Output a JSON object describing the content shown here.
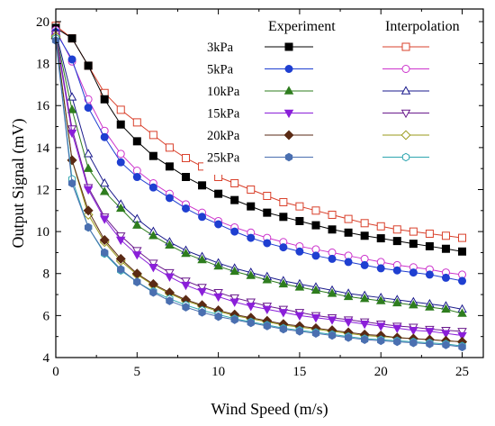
{
  "chart_data": {
    "type": "scatter",
    "title": "",
    "xlabel": "Wind Speed (m/s)",
    "ylabel": "Output Signal  (mV)",
    "xlim": [
      0,
      26.3
    ],
    "ylim": [
      4,
      20.6
    ],
    "x_ticks": [
      0,
      5,
      10,
      15,
      20,
      25
    ],
    "y_ticks": [
      4,
      6,
      8,
      10,
      12,
      14,
      16,
      18,
      20
    ],
    "grid": false,
    "legend_position": "top-right",
    "legend_headers": [
      "Experiment",
      "Interpolation"
    ],
    "experiment_x": [
      0,
      1,
      2,
      3,
      4,
      5,
      6,
      7,
      8,
      9,
      10,
      11,
      12,
      13,
      14,
      15,
      16,
      17,
      18,
      19,
      20,
      21,
      22,
      23,
      24,
      25
    ],
    "interpolation_x": [
      0,
      1,
      2,
      3,
      4,
      5,
      6,
      7,
      8,
      9,
      10,
      11,
      12,
      13,
      14,
      15,
      16,
      17,
      18,
      19,
      20,
      21,
      22,
      23,
      24,
      25
    ],
    "series": [
      {
        "name": "3kPa",
        "color": "#000000",
        "interp_color": "#d9402b",
        "marker": "square",
        "experiment": [
          19.7,
          19.2,
          17.9,
          16.3,
          15.1,
          14.3,
          13.6,
          13.1,
          12.6,
          12.2,
          11.8,
          11.5,
          11.2,
          10.9,
          10.7,
          10.5,
          10.3,
          10.1,
          9.95,
          9.8,
          9.68,
          9.55,
          9.42,
          9.3,
          9.18,
          9.05
        ],
        "interpolation": [
          19.8,
          19.2,
          17.9,
          16.6,
          15.8,
          15.2,
          14.6,
          14.0,
          13.5,
          13.1,
          12.6,
          12.3,
          12.0,
          11.7,
          11.4,
          11.2,
          11.0,
          10.8,
          10.6,
          10.4,
          10.25,
          10.1,
          10.0,
          9.9,
          9.8,
          9.7
        ]
      },
      {
        "name": "5kPa",
        "color": "#1f3fd1",
        "interp_color": "#cc33cc",
        "marker": "circle",
        "experiment": [
          19.5,
          18.2,
          15.9,
          14.5,
          13.3,
          12.6,
          12.1,
          11.6,
          11.1,
          10.7,
          10.35,
          10.0,
          9.7,
          9.45,
          9.25,
          9.05,
          8.85,
          8.7,
          8.55,
          8.4,
          8.25,
          8.15,
          8.05,
          7.95,
          7.8,
          7.65
        ],
        "interpolation": [
          19.6,
          18.1,
          16.3,
          14.8,
          13.7,
          12.9,
          12.3,
          11.8,
          11.3,
          10.9,
          10.5,
          10.2,
          9.95,
          9.7,
          9.5,
          9.3,
          9.15,
          9.0,
          8.85,
          8.7,
          8.55,
          8.4,
          8.3,
          8.2,
          8.05,
          7.95
        ]
      },
      {
        "name": "10kPa",
        "color": "#2e7d1e",
        "interp_color": "#1a1a8c",
        "marker": "triangle-up",
        "experiment": [
          19.4,
          15.8,
          13.0,
          11.9,
          11.1,
          10.3,
          9.8,
          9.35,
          8.95,
          8.65,
          8.35,
          8.1,
          7.9,
          7.7,
          7.5,
          7.35,
          7.2,
          7.05,
          6.9,
          6.8,
          6.7,
          6.6,
          6.5,
          6.4,
          6.3,
          6.1
        ],
        "interpolation": [
          19.5,
          16.4,
          13.7,
          12.3,
          11.3,
          10.6,
          10.0,
          9.5,
          9.1,
          8.8,
          8.5,
          8.25,
          8.05,
          7.85,
          7.65,
          7.5,
          7.35,
          7.2,
          7.05,
          6.95,
          6.85,
          6.75,
          6.65,
          6.55,
          6.45,
          6.3
        ]
      },
      {
        "name": "15kPa",
        "color": "#8a1fd9",
        "interp_color": "#6a1a8c",
        "marker": "triangle-down",
        "experiment": [
          19.3,
          14.7,
          12.0,
          10.6,
          9.6,
          8.9,
          8.3,
          7.85,
          7.45,
          7.15,
          6.9,
          6.65,
          6.45,
          6.3,
          6.15,
          6.0,
          5.9,
          5.8,
          5.7,
          5.6,
          5.5,
          5.4,
          5.3,
          5.25,
          5.15,
          5.05
        ],
        "interpolation": [
          19.4,
          14.9,
          12.1,
          10.7,
          9.8,
          9.1,
          8.5,
          8.05,
          7.65,
          7.35,
          7.1,
          6.85,
          6.65,
          6.45,
          6.3,
          6.15,
          6.0,
          5.9,
          5.8,
          5.7,
          5.6,
          5.5,
          5.45,
          5.35,
          5.3,
          5.25
        ]
      },
      {
        "name": "20kPa",
        "color": "#5a2a14",
        "interp_color": "#9a9a1a",
        "marker": "diamond",
        "experiment": [
          19.2,
          13.4,
          11.0,
          9.6,
          8.7,
          8.0,
          7.5,
          7.1,
          6.75,
          6.5,
          6.25,
          6.05,
          5.9,
          5.75,
          5.6,
          5.5,
          5.4,
          5.3,
          5.2,
          5.1,
          5.05,
          4.95,
          4.9,
          4.85,
          4.8,
          4.75
        ],
        "interpolation": [
          19.3,
          13.4,
          10.8,
          9.5,
          8.6,
          7.95,
          7.45,
          7.05,
          6.7,
          6.45,
          6.2,
          6.0,
          5.85,
          5.7,
          5.55,
          5.45,
          5.35,
          5.25,
          5.15,
          5.05,
          5.0,
          4.95,
          4.9,
          4.85,
          4.8,
          4.75
        ]
      },
      {
        "name": "25kPa",
        "color": "#4a6fb0",
        "interp_color": "#2fa6b0",
        "marker": "hexagon",
        "experiment": [
          19.1,
          12.3,
          10.2,
          9.0,
          8.2,
          7.6,
          7.1,
          6.7,
          6.4,
          6.15,
          5.95,
          5.8,
          5.65,
          5.5,
          5.35,
          5.25,
          5.15,
          5.05,
          4.95,
          4.85,
          4.8,
          4.75,
          4.7,
          4.65,
          4.6,
          4.5
        ],
        "interpolation": [
          19.2,
          12.5,
          10.2,
          8.95,
          8.15,
          7.6,
          7.15,
          6.8,
          6.5,
          6.25,
          6.05,
          5.85,
          5.7,
          5.55,
          5.4,
          5.3,
          5.2,
          5.1,
          5.0,
          4.9,
          4.85,
          4.8,
          4.75,
          4.7,
          4.65,
          4.55
        ]
      }
    ]
  }
}
